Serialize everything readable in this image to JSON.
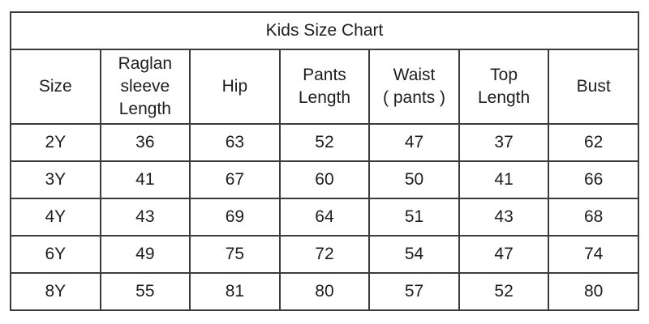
{
  "chart_data": {
    "type": "table",
    "title": "Kids Size Chart",
    "columns": [
      "Size",
      "Raglan sleeve Length",
      "Hip",
      "Pants Length",
      "Waist ( pants )",
      "Top Length",
      "Bust"
    ],
    "rows": [
      [
        "2Y",
        "36",
        "63",
        "52",
        "47",
        "37",
        "62"
      ],
      [
        "3Y",
        "41",
        "67",
        "60",
        "50",
        "41",
        "66"
      ],
      [
        "4Y",
        "43",
        "69",
        "64",
        "51",
        "43",
        "68"
      ],
      [
        "6Y",
        "49",
        "75",
        "72",
        "54",
        "47",
        "74"
      ],
      [
        "8Y",
        "55",
        "81",
        "80",
        "57",
        "52",
        "80"
      ]
    ],
    "units_shown": false,
    "layout": {
      "grid": true,
      "columns_count": 7,
      "data_rows_count": 5
    }
  },
  "colors": {
    "background": "#ffffff",
    "border": "#3c3c3c",
    "text": "#1e1e1e"
  }
}
